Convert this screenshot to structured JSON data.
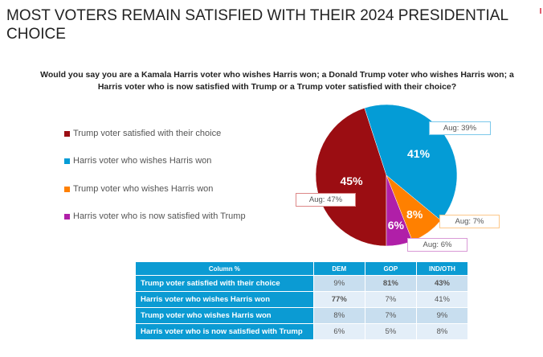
{
  "title": "MOST VOTERS REMAIN SATISFIED WITH THEIR 2024 PRESIDENTIAL CHOICE",
  "question": "Would you say you are a Kamala Harris voter who wishes Harris won; a Donald Trump voter who wishes Harris won; a Harris voter who is now satisfied with Trump or a Trump voter satisfied with their choice?",
  "chart_data": [
    {
      "type": "pie",
      "legend_position": "left",
      "slices": [
        {
          "name": "Trump voter satisfied with their choice",
          "value": 45,
          "label": "45%",
          "aug": "Aug: 47%",
          "color": "#9b0d12"
        },
        {
          "name": "Harris voter who wishes Harris won",
          "value": 41,
          "label": "41%",
          "aug": "Aug: 39%",
          "color": "#049cd6"
        },
        {
          "name": "Trump voter who wishes Harris won",
          "value": 8,
          "label": "8%",
          "aug": "Aug: 7%",
          "color": "#ff8000"
        },
        {
          "name": "Harris voter who is now satisfied with Trump",
          "value": 6,
          "label": "6%",
          "aug": "Aug: 6%",
          "color": "#b01fa8"
        }
      ]
    },
    {
      "type": "table",
      "columns": [
        "Column %",
        "DEM",
        "GOP",
        "IND/OTH"
      ],
      "rows": [
        {
          "label": "Trump voter satisfied with their choice",
          "values": [
            "9%",
            "81%",
            "43%"
          ]
        },
        {
          "label": "Harris voter who wishes Harris won",
          "values": [
            "77%",
            "7%",
            "41%"
          ]
        },
        {
          "label": "Trump voter who wishes Harris won",
          "values": [
            "8%",
            "7%",
            "9%"
          ]
        },
        {
          "label": "Harris voter who is now satisfied with Trump",
          "values": [
            "6%",
            "5%",
            "8%"
          ]
        }
      ]
    }
  ]
}
